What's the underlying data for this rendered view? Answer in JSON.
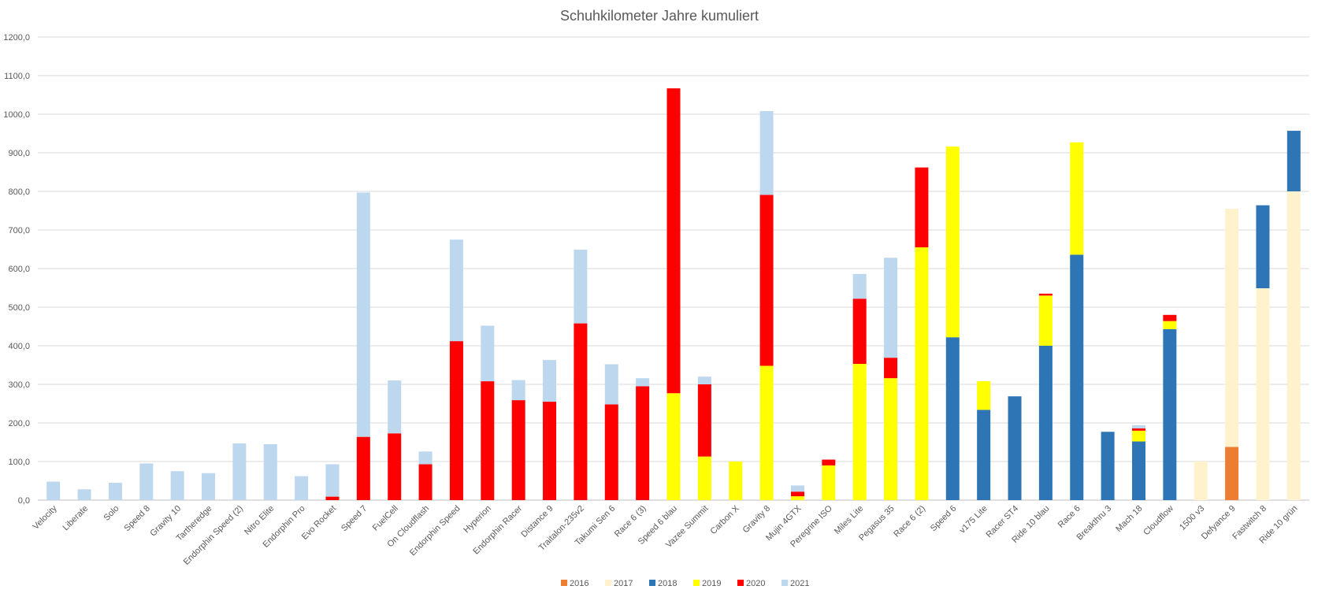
{
  "chart_data": {
    "type": "bar",
    "stacked": true,
    "title": "Schuhkilometer Jahre kumuliert",
    "xlabel": "",
    "ylabel": "",
    "ylim": [
      0,
      1200
    ],
    "yticks": [
      "0,0",
      "100,0",
      "200,0",
      "300,0",
      "400,0",
      "500,0",
      "600,0",
      "700,0",
      "800,0",
      "900,0",
      "1000,0",
      "1100,0",
      "1200,0"
    ],
    "ytick_values": [
      0,
      100,
      200,
      300,
      400,
      500,
      600,
      700,
      800,
      900,
      1000,
      1100,
      1200
    ],
    "grid": true,
    "legend_position": "bottom",
    "categories": [
      "Velocity",
      "Liberate",
      "Solo",
      "Speed 8",
      "Gravity 10",
      "Tartheredge",
      "Endorphin Speed (2)",
      "Nitro Elite",
      "Endorphin Pro",
      "Evo Rocket",
      "Speed 7",
      "FuelCell",
      "On Cloudflash",
      "Endorphin Speed",
      "Hyperion",
      "Endorphin Racer",
      "Distance 9",
      "Traitalon-235v2",
      "Takumi Sen 6",
      "Race 6 (3)",
      "Speed 6 blau",
      "Vazee Summit",
      "Carbon X",
      "Gravity 8",
      "Mujin 4GTX",
      "Peregrine ISO",
      "Miles Lite",
      "Pegasus 35",
      "Race 6 (2)",
      "Speed 6",
      "v175 Lite",
      "Racer ST4",
      "Ride 10 blau",
      "Race 6",
      "Breakthru 3",
      "Mach 18",
      "Cloudflow",
      "1500 v3",
      "Defyance 9",
      "Fastwitch 8",
      "Ride 10 grün"
    ],
    "series": [
      {
        "name": "2016",
        "color": "#ED7D31",
        "values": [
          0,
          0,
          0,
          0,
          0,
          0,
          0,
          0,
          0,
          0,
          0,
          0,
          0,
          0,
          0,
          0,
          0,
          0,
          0,
          0,
          0,
          0,
          0,
          0,
          0,
          0,
          0,
          0,
          0,
          0,
          0,
          0,
          0,
          0,
          0,
          0,
          0,
          0,
          138,
          0,
          0
        ]
      },
      {
        "name": "2017",
        "color": "#FFF2CC",
        "values": [
          0,
          0,
          0,
          0,
          0,
          0,
          0,
          0,
          0,
          0,
          0,
          0,
          0,
          0,
          0,
          0,
          0,
          0,
          0,
          0,
          0,
          0,
          0,
          0,
          0,
          0,
          0,
          0,
          0,
          0,
          0,
          0,
          0,
          0,
          0,
          0,
          0,
          100,
          617,
          549,
          800
        ]
      },
      {
        "name": "2018",
        "color": "#2E75B6",
        "values": [
          0,
          0,
          0,
          0,
          0,
          0,
          0,
          0,
          0,
          0,
          0,
          0,
          0,
          0,
          0,
          0,
          0,
          0,
          0,
          0,
          0,
          0,
          0,
          0,
          0,
          0,
          0,
          0,
          0,
          422,
          234,
          269,
          400,
          636,
          177,
          152,
          443,
          0,
          0,
          215,
          157
        ]
      },
      {
        "name": "2019",
        "color": "#FFFF00",
        "values": [
          0,
          0,
          0,
          0,
          0,
          0,
          0,
          0,
          0,
          0,
          0,
          0,
          0,
          0,
          0,
          0,
          0,
          0,
          0,
          0,
          277,
          113,
          100,
          348,
          10,
          90,
          353,
          316,
          655,
          494,
          74,
          0,
          130,
          291,
          0,
          28,
          21,
          0,
          0,
          0,
          0
        ]
      },
      {
        "name": "2020",
        "color": "#FF0000",
        "values": [
          0,
          0,
          0,
          0,
          0,
          0,
          0,
          0,
          0,
          9,
          164,
          173,
          93,
          412,
          308,
          259,
          255,
          458,
          248,
          295,
          790,
          187,
          0,
          443,
          12,
          15,
          169,
          53,
          207,
          0,
          0,
          0,
          5,
          0,
          0,
          6,
          16,
          0,
          0,
          0,
          0
        ]
      },
      {
        "name": "2021",
        "color": "#BDD7EE",
        "values": [
          48,
          28,
          45,
          95,
          75,
          70,
          147,
          145,
          62,
          84,
          633,
          137,
          33,
          263,
          144,
          52,
          108,
          191,
          104,
          21,
          0,
          20,
          0,
          217,
          16,
          0,
          64,
          259,
          0,
          0,
          0,
          0,
          0,
          0,
          0,
          8,
          0,
          0,
          0,
          0,
          0
        ]
      }
    ]
  }
}
